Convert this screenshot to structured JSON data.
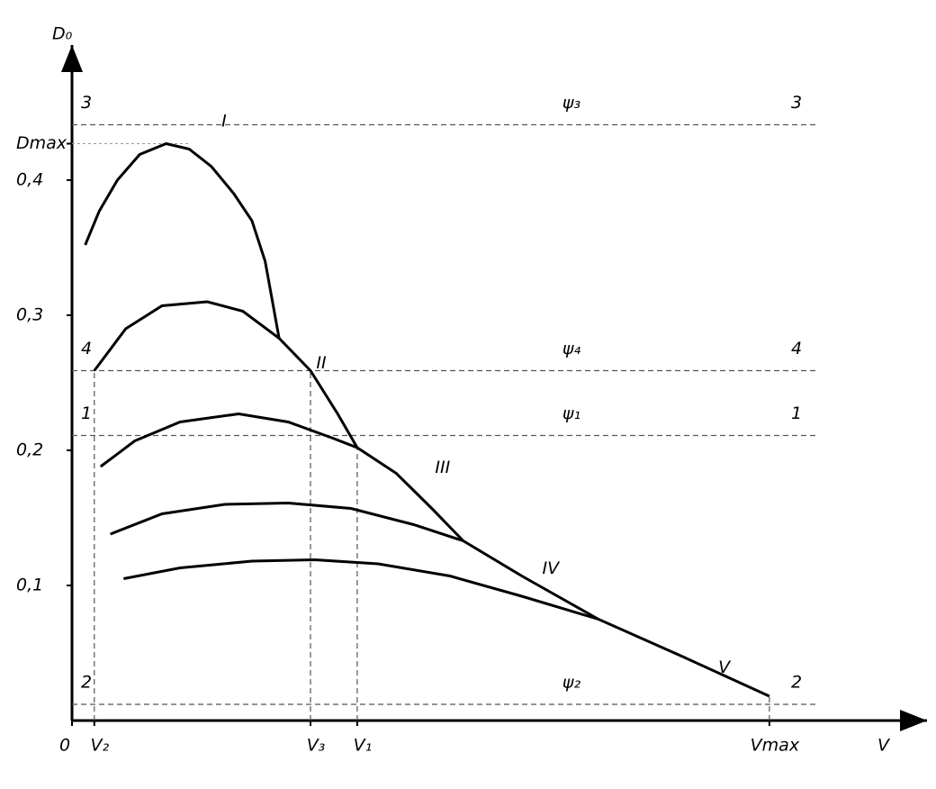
{
  "chart_data": {
    "type": "line",
    "y_label": "D₀",
    "x_label": "V",
    "xlim": [
      0,
      122.6
    ],
    "ylim": [
      0,
      0.5
    ],
    "xticks": [
      {
        "value": 0,
        "label": "0"
      },
      {
        "value": 3.2,
        "label": "V₂"
      },
      {
        "value": 34.2,
        "label": "V₃"
      },
      {
        "value": 40.9,
        "label": "V₁"
      },
      {
        "value": 100,
        "label": "Vmax"
      }
    ],
    "yticks": [
      {
        "value": 0.1,
        "label": "0,1"
      },
      {
        "value": 0.2,
        "label": "0,2"
      },
      {
        "value": 0.3,
        "label": "0,3"
      },
      {
        "value": 0.4,
        "label": "0,4"
      },
      {
        "value": 0.427,
        "label": "Dmax"
      }
    ],
    "color": "#000000",
    "series": [
      {
        "name": "I",
        "x": [
          1.9,
          3.9,
          6.5,
          9.7,
          13.5,
          16.8,
          20.0,
          23.2,
          25.8,
          27.7,
          29.7
        ],
        "values": [
          0.352,
          0.377,
          0.4,
          0.419,
          0.427,
          0.423,
          0.41,
          0.39,
          0.37,
          0.34,
          0.283
        ]
      },
      {
        "name": "II",
        "x": [
          3.2,
          7.7,
          12.9,
          19.4,
          24.5,
          29.7,
          34.2,
          38.1,
          40.9
        ],
        "values": [
          0.259,
          0.29,
          0.307,
          0.31,
          0.303,
          0.283,
          0.259,
          0.227,
          0.202
        ]
      },
      {
        "name": "III",
        "x": [
          4.1,
          9.0,
          15.5,
          23.9,
          31.0,
          37.4,
          40.9,
          46.5,
          51.6,
          56.1
        ],
        "values": [
          0.188,
          0.207,
          0.221,
          0.227,
          0.221,
          0.209,
          0.202,
          0.183,
          0.157,
          0.133
        ]
      },
      {
        "name": "IV",
        "x": [
          5.5,
          12.9,
          21.9,
          31.0,
          40.0,
          49.0,
          56.1,
          64.5,
          75.5
        ],
        "values": [
          0.138,
          0.153,
          0.16,
          0.161,
          0.157,
          0.145,
          0.133,
          0.107,
          0.075
        ]
      },
      {
        "name": "V",
        "x": [
          7.4,
          15.5,
          25.8,
          34.8,
          43.9,
          54.2,
          64.5,
          75.5,
          87.7,
          100
        ],
        "values": [
          0.105,
          0.113,
          0.118,
          0.119,
          0.116,
          0.107,
          0.092,
          0.075,
          0.047,
          0.018
        ]
      }
    ],
    "reference_lines": [
      {
        "label": "ψ₃",
        "number": "3",
        "value": 0.441
      },
      {
        "label": "ψ₄",
        "number": "4",
        "value": 0.259
      },
      {
        "label": "ψ₁",
        "number": "1",
        "value": 0.211
      },
      {
        "label": "ψ₂",
        "number": "2",
        "value": 0.012
      }
    ]
  }
}
